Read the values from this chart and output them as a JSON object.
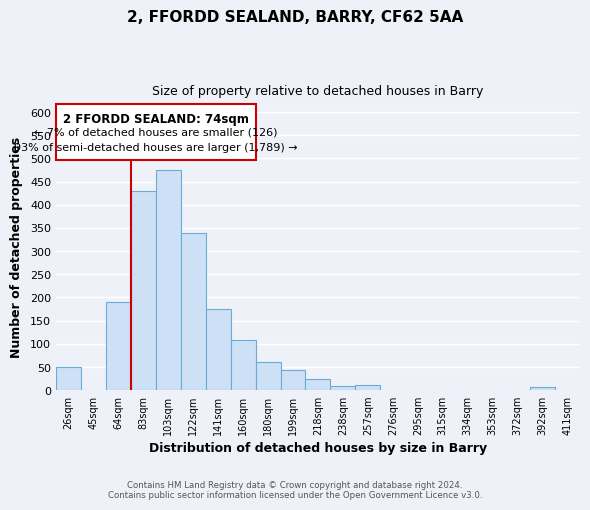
{
  "title": "2, FFORDD SEALAND, BARRY, CF62 5AA",
  "subtitle": "Size of property relative to detached houses in Barry",
  "xlabel": "Distribution of detached houses by size in Barry",
  "ylabel": "Number of detached properties",
  "bar_labels": [
    "26sqm",
    "45sqm",
    "64sqm",
    "83sqm",
    "103sqm",
    "122sqm",
    "141sqm",
    "160sqm",
    "180sqm",
    "199sqm",
    "218sqm",
    "238sqm",
    "257sqm",
    "276sqm",
    "295sqm",
    "315sqm",
    "334sqm",
    "353sqm",
    "372sqm",
    "392sqm",
    "411sqm"
  ],
  "bar_values": [
    50,
    0,
    190,
    430,
    475,
    340,
    175,
    108,
    60,
    44,
    25,
    10,
    12,
    0,
    0,
    0,
    0,
    0,
    0,
    6,
    0
  ],
  "bar_color": "#cde0f5",
  "bar_edge_color": "#6aaad4",
  "highlight_line_color": "#cc0000",
  "ylim": [
    0,
    620
  ],
  "yticks": [
    0,
    50,
    100,
    150,
    200,
    250,
    300,
    350,
    400,
    450,
    500,
    550,
    600
  ],
  "annotation_title": "2 FFORDD SEALAND: 74sqm",
  "annotation_line1": "← 7% of detached houses are smaller (126)",
  "annotation_line2": "93% of semi-detached houses are larger (1,789) →",
  "annotation_box_color": "#ffffff",
  "annotation_box_edge": "#cc0000",
  "footer_line1": "Contains HM Land Registry data © Crown copyright and database right 2024.",
  "footer_line2": "Contains public sector information licensed under the Open Government Licence v3.0.",
  "background_color": "#eef2f8",
  "grid_color": "#ffffff"
}
